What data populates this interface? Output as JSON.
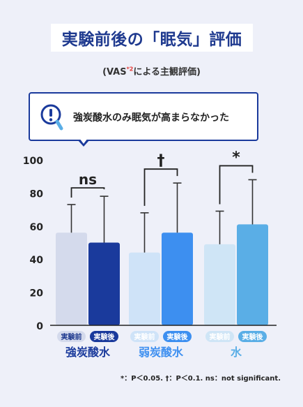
{
  "title": "実験前後の「眠気」評価",
  "subtitle": {
    "prefix": "(VAS",
    "sup": "*2",
    "suffix": "による主観評価)"
  },
  "callout": {
    "text": "強炭酸水のみ眠気が高まらなかった",
    "icon": "question-magnifier-icon"
  },
  "footnote": "*：P＜0.05. †：P＜0.1. ns：not significant.",
  "colors": {
    "text_dark": "#1f3a8f",
    "before_carbonated": "#d4daec",
    "after_carbonated": "#1a3a9c",
    "before_weak": "#cfe3f8",
    "after_weak": "#3d8ff0",
    "before_water": "#cfe5f6",
    "after_water": "#5aaee6"
  },
  "chart_data": {
    "type": "bar",
    "ylim": [
      0,
      100
    ],
    "yticks": [
      0,
      20,
      40,
      60,
      80,
      100
    ],
    "groups": [
      {
        "label": "強炭酸水",
        "significance": "ns",
        "bars": [
          {
            "label": "実験前",
            "value": 56,
            "error_upper": 73,
            "color": "#d4daec",
            "label_bg": "#d4daec",
            "label_color": "#1f3a8f"
          },
          {
            "label": "実験後",
            "value": 50,
            "error_upper": 78,
            "color": "#1a3a9c",
            "label_bg": "#1a3a9c",
            "label_color": "#ffffff"
          }
        ]
      },
      {
        "label": "弱炭酸水",
        "significance": "†",
        "bars": [
          {
            "label": "実験前",
            "value": 44,
            "error_upper": 68,
            "color": "#cfe3f8",
            "label_bg": "#cfe3f8",
            "label_color": "#ffffff"
          },
          {
            "label": "実験後",
            "value": 56,
            "error_upper": 86,
            "color": "#3d8ff0",
            "label_bg": "#3d8ff0",
            "label_color": "#ffffff"
          }
        ]
      },
      {
        "label": "水",
        "significance": "*",
        "bars": [
          {
            "label": "実験前",
            "value": 49,
            "error_upper": 69,
            "color": "#cfe5f6",
            "label_bg": "#cfe5f6",
            "label_color": "#ffffff"
          },
          {
            "label": "実験後",
            "value": 61,
            "error_upper": 88,
            "color": "#5aaee6",
            "label_bg": "#5aaee6",
            "label_color": "#ffffff"
          }
        ]
      }
    ]
  }
}
